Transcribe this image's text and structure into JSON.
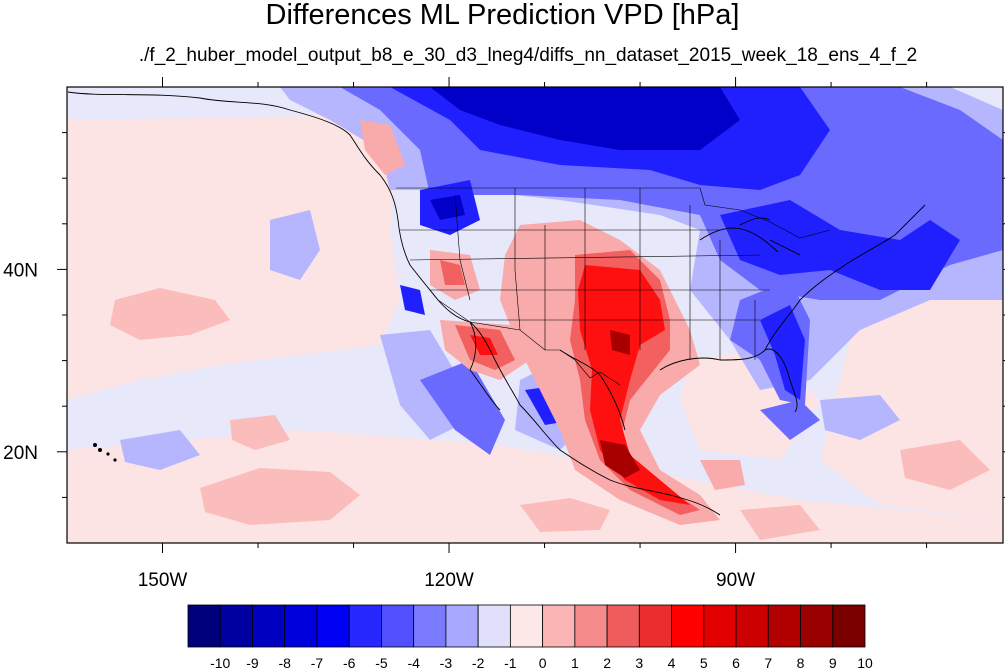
{
  "title": "Differences ML Prediction VPD [hPa]",
  "subtitle": "./f_2_huber_model_output_b8_e_30_d3_lneg4/diffs_nn_dataset_2015_week_18_ens_4_f_2",
  "map": {
    "lon_range": [
      -160,
      -62
    ],
    "lat_range": [
      10,
      60
    ],
    "x_tick_labels": [
      {
        "lon": -150,
        "label": "150W"
      },
      {
        "lon": -120,
        "label": "120W"
      },
      {
        "lon": -90,
        "label": "90W"
      }
    ],
    "y_tick_labels": [
      {
        "lat": 40,
        "label": "40N"
      },
      {
        "lat": 20,
        "label": "20N"
      }
    ]
  },
  "colorbar": {
    "labels": [
      "-10",
      "-9",
      "-8",
      "-7",
      "-6",
      "-5",
      "-4",
      "-3",
      "-2",
      "-1",
      "0",
      "1",
      "2",
      "3",
      "4",
      "5",
      "6",
      "7",
      "8",
      "9",
      "10"
    ],
    "colors": [
      "#00007a",
      "#0000a0",
      "#0000c0",
      "#0000dd",
      "#0000f5",
      "#2727ff",
      "#5050ff",
      "#7a7aff",
      "#a8a8ff",
      "#e0e0fa",
      "#fde8e8",
      "#fbb5b5",
      "#f58a8a",
      "#ee5c5c",
      "#ea2e2e",
      "#ff0000",
      "#e00000",
      "#cc0000",
      "#b20000",
      "#990000",
      "#7a0000"
    ]
  }
}
